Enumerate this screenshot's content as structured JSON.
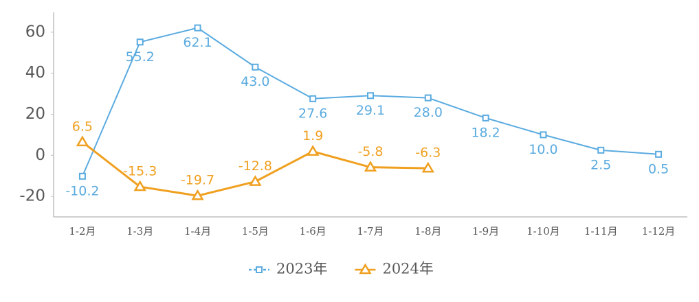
{
  "chart_data": {
    "type": "line",
    "categories": [
      "1-2月",
      "1-3月",
      "1-4月",
      "1-5月",
      "1-6月",
      "1-7月",
      "1-8月",
      "1-9月",
      "1-10月",
      "1-11月",
      "1-12月"
    ],
    "series": [
      {
        "name": "2023年",
        "color": "#5aabe0",
        "marker": "square",
        "values": [
          -10.2,
          55.2,
          62.1,
          43.0,
          27.6,
          29.1,
          28.0,
          18.2,
          10.0,
          2.5,
          0.5
        ],
        "value_labels": [
          "-10.2",
          "55.2",
          "62.1",
          "43.0",
          "27.6",
          "29.1",
          "28.0",
          "18.2",
          "10.0",
          "2.5",
          "0.5"
        ]
      },
      {
        "name": "2024年",
        "color": "#f0a020",
        "marker": "triangle",
        "values": [
          6.5,
          -15.3,
          -19.7,
          -12.8,
          1.9,
          -5.8,
          -6.3,
          null,
          null,
          null,
          null
        ],
        "value_labels": [
          "6.5",
          "-15.3",
          "-19.7",
          "-12.8",
          "1.9",
          "-5.8",
          "-6.3",
          null,
          null,
          null,
          null
        ]
      }
    ],
    "ylim": [
      -30,
      70
    ],
    "yticks": [
      -20,
      0,
      20,
      40,
      60
    ],
    "legend": "bottom"
  }
}
